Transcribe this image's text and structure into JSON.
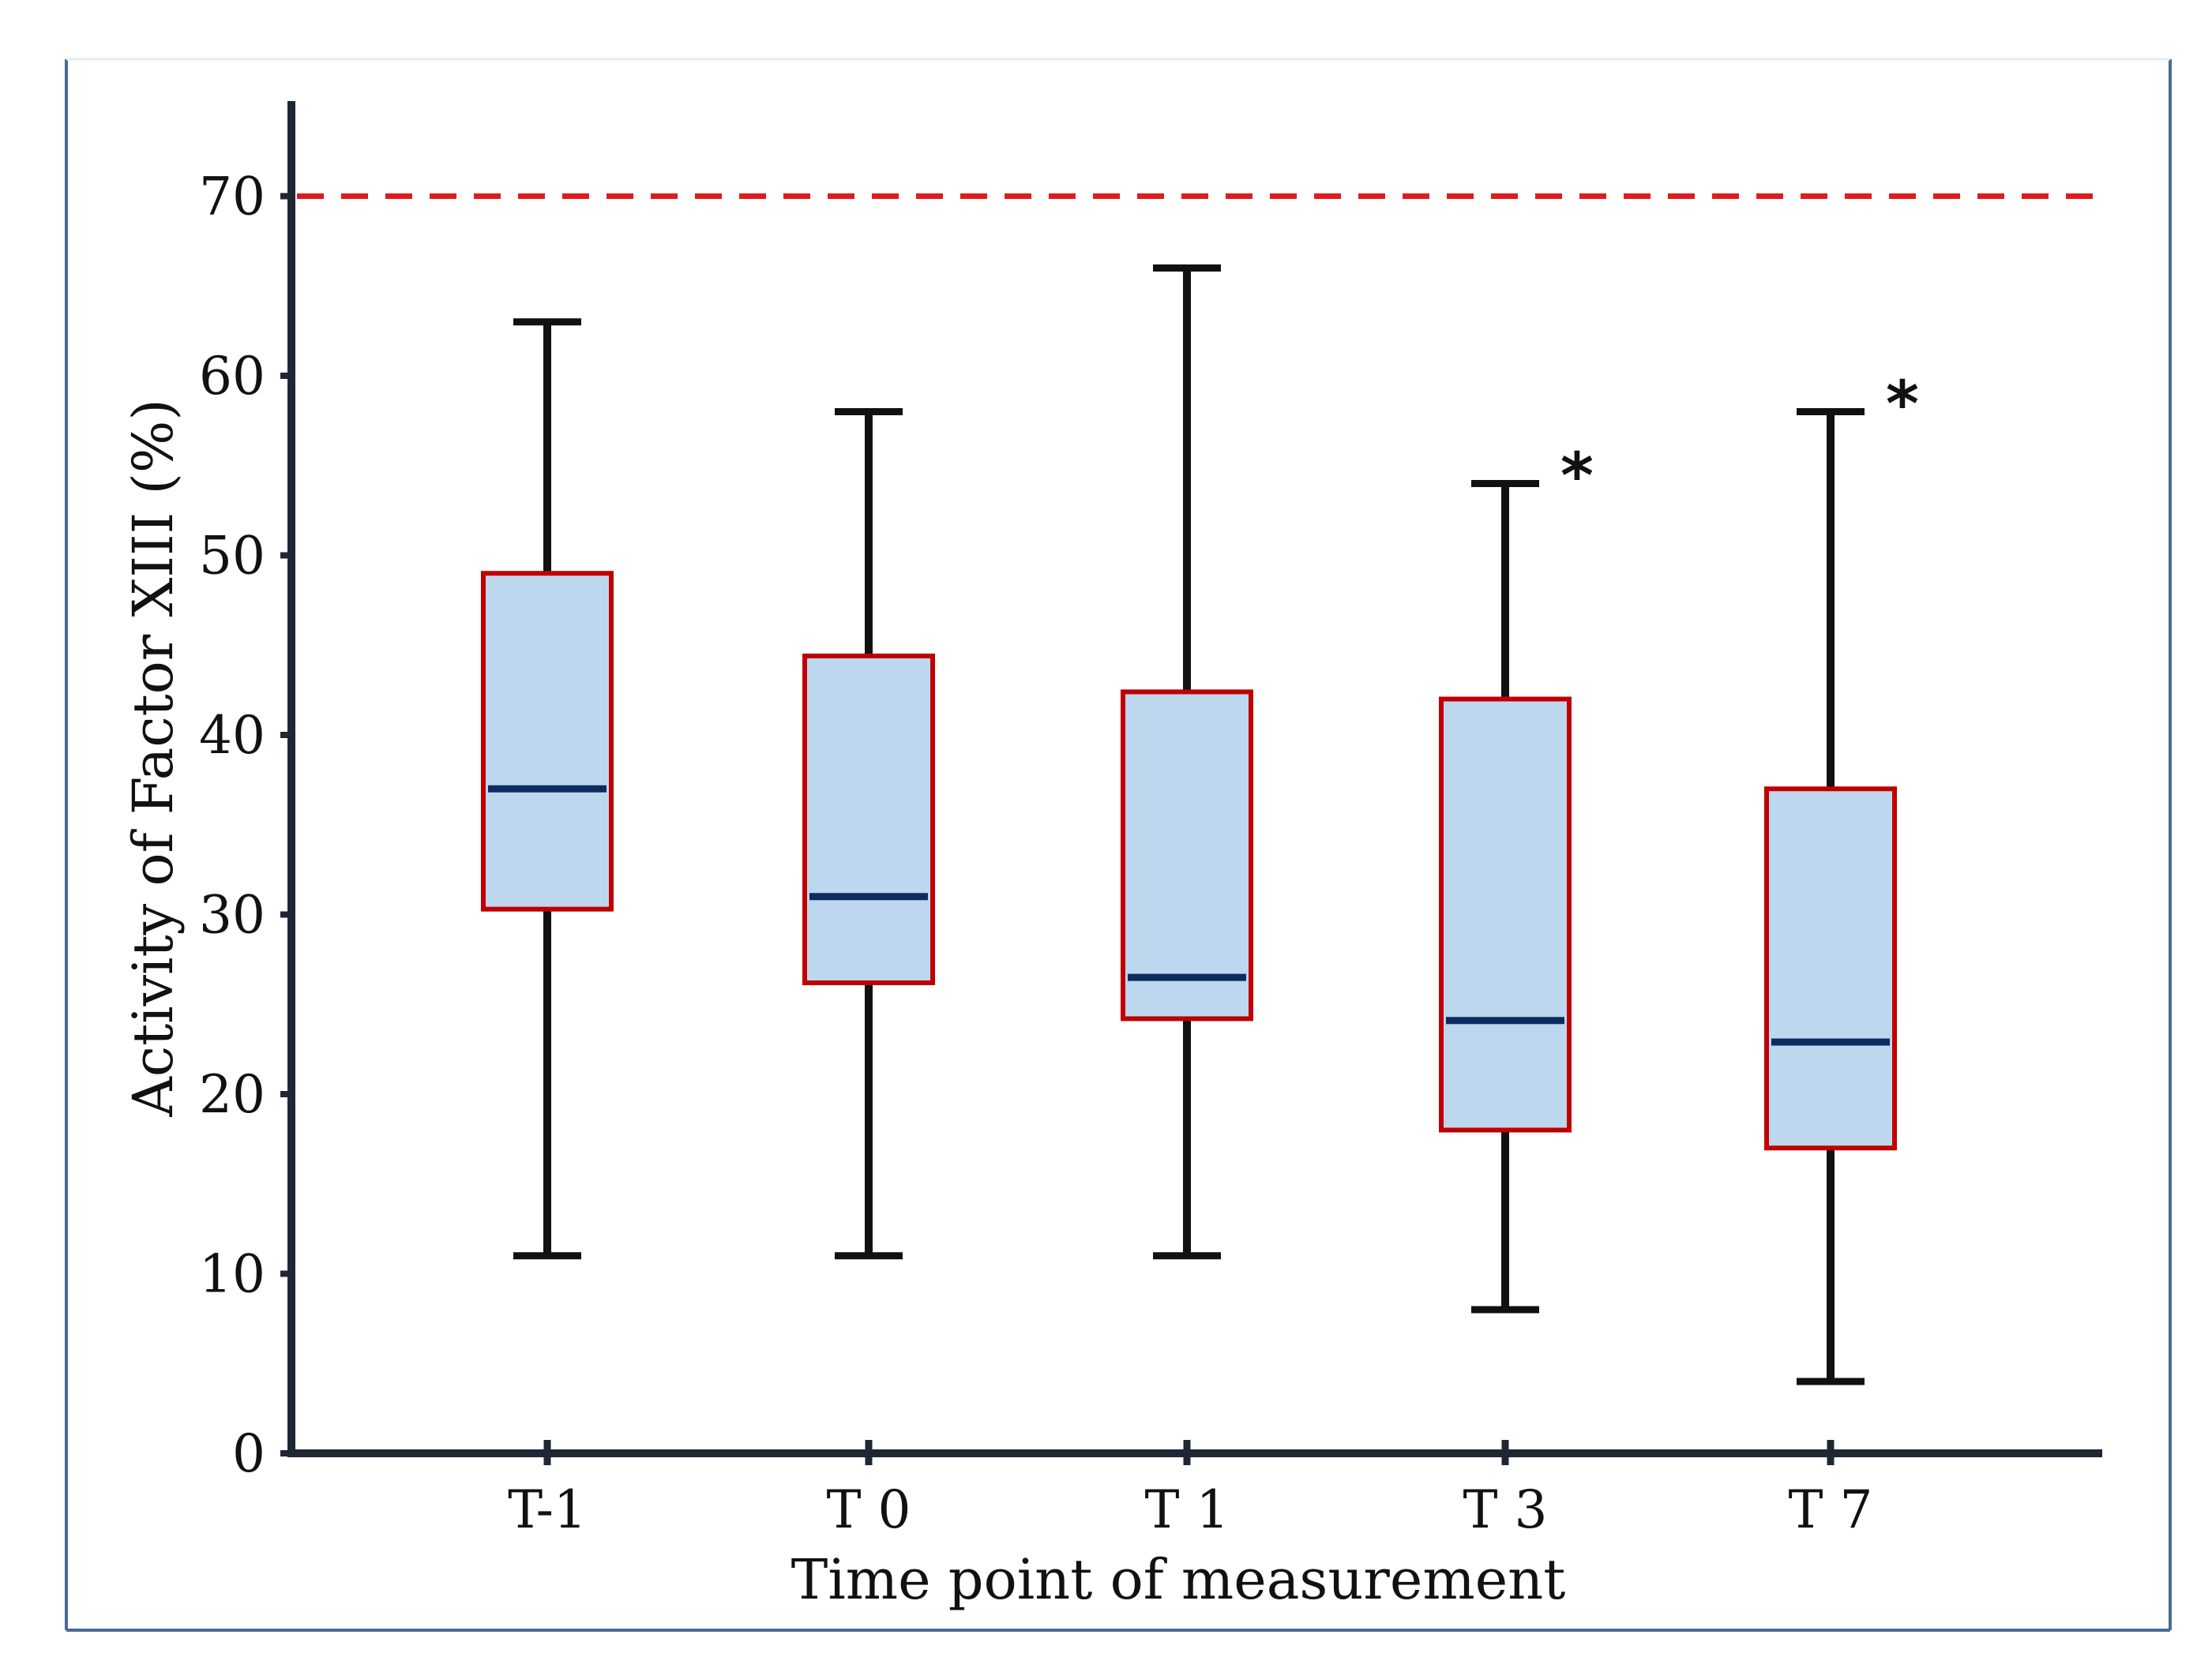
{
  "chart_data": {
    "type": "box",
    "title": "",
    "xlabel": "Time point of measurement",
    "ylabel": "Activity of Factor XIII (%)",
    "ylim": [
      0,
      75
    ],
    "yticks": [
      0,
      10,
      20,
      30,
      40,
      50,
      60,
      70
    ],
    "ytick_labels": [
      "0",
      "10",
      "20",
      "30",
      "40",
      "50",
      "60",
      "70"
    ],
    "reference_line": {
      "value": 70,
      "style": "dashed",
      "color": "#e31a1c"
    },
    "categories": [
      "T-1",
      "T 0",
      "T 1",
      "T 3",
      "T 7"
    ],
    "boxes": [
      {
        "label": "T-1",
        "min": 11,
        "q1": 30.3,
        "median": 37,
        "q3": 49,
        "max": 63,
        "significance": ""
      },
      {
        "label": "T 0",
        "min": 11,
        "q1": 26.2,
        "median": 31,
        "q3": 44.4,
        "max": 58,
        "significance": ""
      },
      {
        "label": "T 1",
        "min": 11,
        "q1": 24.2,
        "median": 26.5,
        "q3": 42.4,
        "max": 66,
        "significance": ""
      },
      {
        "label": "T 3",
        "min": 8,
        "q1": 18,
        "median": 24.1,
        "q3": 42,
        "max": 54,
        "significance": "*"
      },
      {
        "label": "T 7",
        "min": 4,
        "q1": 17,
        "median": 22.9,
        "q3": 37,
        "max": 58,
        "significance": "*"
      }
    ],
    "colors": {
      "box_fill": "#bdd7ee",
      "box_edge": "#c00000",
      "median": "#0d2b5e",
      "whisker": "#111111",
      "axis": "#1e2733",
      "frame": "#4a6a94"
    }
  }
}
